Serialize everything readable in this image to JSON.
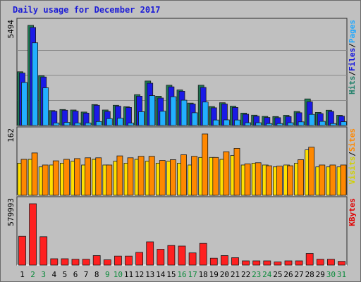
{
  "chart_data": {
    "type": "bar",
    "title": "Daily usage for December 2017",
    "days": [
      "1",
      "2",
      "3",
      "4",
      "5",
      "6",
      "7",
      "8",
      "9",
      "10",
      "11",
      "12",
      "13",
      "14",
      "15",
      "16",
      "17",
      "18",
      "19",
      "20",
      "21",
      "22",
      "23",
      "24",
      "25",
      "26",
      "27",
      "28",
      "29",
      "30",
      "31"
    ],
    "weekend_days": [
      "2",
      "3",
      "9",
      "10",
      "16",
      "17",
      "23",
      "24",
      "30",
      "31"
    ],
    "panels": [
      {
        "name": "hits-files-pages",
        "ymax_label": "5494",
        "ymax": 5494,
        "legend": [
          {
            "text": "Hits",
            "color": "#20806a"
          },
          {
            "text": "Files",
            "color": "#1010e0"
          },
          {
            "text": "Pages",
            "color": "#20a8ff"
          }
        ],
        "series": [
          {
            "name": "Hits",
            "color": "#1e7a55",
            "values": [
              2950,
              5494,
              2730,
              820,
              880,
              850,
              740,
              1150,
              850,
              1110,
              1030,
              1690,
              2440,
              1610,
              2210,
              1950,
              1230,
              2210,
              1040,
              1250,
              1060,
              680,
              570,
              500,
              490,
              560,
              770,
              1460,
              720,
              840,
              560
            ]
          },
          {
            "name": "Files",
            "color": "#1a1ae6",
            "values": [
              2880,
              5380,
              2660,
              780,
              840,
              790,
              680,
              1110,
              770,
              1060,
              990,
              1610,
              2320,
              1510,
              2120,
              1880,
              1180,
              2090,
              970,
              1180,
              990,
              620,
              510,
              440,
              430,
              490,
              700,
              1300,
              650,
              770,
              510
            ]
          },
          {
            "name": "Pages",
            "color": "#22b0ff",
            "values": [
              2360,
              4540,
              2070,
              140,
              170,
              140,
              140,
              220,
              380,
              400,
              130,
              760,
              1640,
              780,
              1580,
              1390,
              700,
              1290,
              300,
              310,
              300,
              150,
              150,
              110,
              110,
              150,
              200,
              610,
              230,
              110,
              210
            ]
          }
        ]
      },
      {
        "name": "visits-sites",
        "ymax_label": "162",
        "ymax": 162,
        "legend": [
          {
            "text": "Visits",
            "color": "#d0d000"
          },
          {
            "text": "Sites",
            "color": "#ff8800"
          }
        ],
        "series": [
          {
            "name": "Visits",
            "color": "#ffe000",
            "values": [
              85,
              95,
              75,
              80,
              85,
              90,
              80,
              95,
              80,
              90,
              85,
              95,
              90,
              85,
              90,
              85,
              80,
              100,
              100,
              95,
              105,
              80,
              85,
              80,
              75,
              80,
              85,
              120,
              75,
              75,
              75
            ]
          },
          {
            "name": "Sites",
            "color": "#ff8800",
            "values": [
              95,
              112,
              80,
              91,
              95,
              97,
              99,
              99,
              80,
              104,
              99,
              103,
              103,
              92,
              94,
              107,
              103,
              162,
              100,
              115,
              124,
              83,
              86,
              78,
              77,
              78,
              94,
              127,
              80,
              80,
              80
            ]
          }
        ]
      },
      {
        "name": "kbytes",
        "ymax_label": "579993",
        "ymax": 579993,
        "legend": [
          {
            "text": "KBytes",
            "color": "#e00000"
          }
        ],
        "series": [
          {
            "name": "KBytes",
            "color": "#ff2020",
            "values": [
              272000,
              579993,
              268000,
              60000,
              60000,
              55000,
              55000,
              90000,
              50000,
              85000,
              85000,
              120000,
              220000,
              150000,
              185000,
              180000,
              115000,
              205000,
              65000,
              90000,
              70000,
              40000,
              40000,
              40000,
              30000,
              40000,
              40000,
              110000,
              55000,
              55000,
              35000
            ]
          }
        ]
      }
    ]
  }
}
